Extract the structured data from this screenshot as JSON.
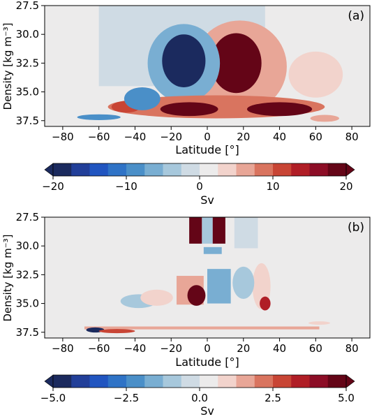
{
  "palette": [
    "#1b2a5e",
    "#223f99",
    "#2155c0",
    "#2f73c6",
    "#4a8fc8",
    "#79aed2",
    "#a7c8dc",
    "#cfdbe4",
    "#ecebeb",
    "#f2d3cc",
    "#e8a697",
    "#d9745f",
    "#c84535",
    "#b01e26",
    "#8c0d26",
    "#640517"
  ],
  "chart_data": [
    {
      "type": "heatmap",
      "panel_label": "(a)",
      "xlabel": "Latitude  [°]",
      "ylabel": "Density [kg m⁻³]",
      "xlim": [
        -90,
        90
      ],
      "ylim": [
        27.5,
        38.0
      ],
      "y_inverted": true,
      "xticks": [
        -80,
        -60,
        -40,
        -20,
        0,
        20,
        40,
        60,
        80
      ],
      "yticks": [
        27.5,
        30.0,
        32.5,
        35.0,
        37.5
      ],
      "colorbar": {
        "label": "Sv",
        "min": -20,
        "max": 20,
        "levels": 16,
        "extend": "both",
        "ticks": [
          -20,
          -10,
          0,
          10,
          20
        ]
      },
      "features": [
        {
          "shape": "rect",
          "lat0": -60,
          "lat1": 0,
          "rho0": 27.5,
          "rho1": 34.5,
          "value": -1.5
        },
        {
          "shape": "rect",
          "lat0": -2,
          "lat1": 32,
          "rho0": 27.5,
          "rho1": 29.8,
          "value": -1.5
        },
        {
          "shape": "ellipse",
          "lat": 18,
          "rho": 32.8,
          "rlat": 26,
          "rrho": 4.0,
          "value": 7
        },
        {
          "shape": "ellipse",
          "lat": 16,
          "rho": 32.5,
          "rlat": 14,
          "rrho": 2.6,
          "value": 22
        },
        {
          "shape": "ellipse",
          "lat": -13,
          "rho": 32.5,
          "rlat": 20,
          "rrho": 3.4,
          "value": -6
        },
        {
          "shape": "ellipse",
          "lat": -13,
          "rho": 32.3,
          "rlat": 12,
          "rrho": 2.3,
          "value": -22
        },
        {
          "shape": "ellipse",
          "lat": 5,
          "rho": 36.3,
          "rlat": 60,
          "rrho": 1.0,
          "value": 9
        },
        {
          "shape": "ellipse",
          "lat": -10,
          "rho": 36.5,
          "rlat": 16,
          "rrho": 0.6,
          "value": 20
        },
        {
          "shape": "ellipse",
          "lat": 40,
          "rho": 36.5,
          "rlat": 18,
          "rrho": 0.6,
          "value": 20
        },
        {
          "shape": "ellipse",
          "lat": -45,
          "rho": 36.3,
          "rlat": 8,
          "rrho": 0.5,
          "value": 12
        },
        {
          "shape": "ellipse",
          "lat": -36,
          "rho": 35.6,
          "rlat": 10,
          "rrho": 1.0,
          "value": -8
        },
        {
          "shape": "ellipse",
          "lat": -60,
          "rho": 37.2,
          "rlat": 12,
          "rrho": 0.25,
          "value": -10
        },
        {
          "shape": "ellipse",
          "lat": 60,
          "rho": 33.5,
          "rlat": 15,
          "rrho": 2.0,
          "value": 3
        },
        {
          "shape": "ellipse",
          "lat": 65,
          "rho": 37.3,
          "rlat": 8,
          "rrho": 0.3,
          "value": 6
        }
      ]
    },
    {
      "type": "heatmap",
      "panel_label": "(b)",
      "xlabel": "Latitude  [°]",
      "ylabel": "Density [kg m⁻³]",
      "xlim": [
        -90,
        90
      ],
      "ylim": [
        27.5,
        38.0
      ],
      "y_inverted": true,
      "xticks": [
        -80,
        -60,
        -40,
        -20,
        0,
        20,
        40,
        60,
        80
      ],
      "yticks": [
        27.5,
        30.0,
        32.5,
        35.0,
        37.5
      ],
      "colorbar": {
        "label": "Sv",
        "min": -5.0,
        "max": 5.0,
        "levels": 16,
        "extend": "both",
        "ticks": [
          "-5.0",
          "-2.5",
          "0.0",
          "2.5",
          "5.0"
        ]
      },
      "features": [
        {
          "shape": "rect",
          "lat0": 15,
          "lat1": 28,
          "rho0": 27.5,
          "rho1": 30.2,
          "value": -0.5
        },
        {
          "shape": "rect",
          "lat0": -3,
          "lat1": 3,
          "rho0": 27.5,
          "rho1": 29.8,
          "value": -0.8
        },
        {
          "shape": "rect",
          "lat0": -10,
          "lat1": -3,
          "rho0": 27.5,
          "rho1": 29.8,
          "value": 5.2
        },
        {
          "shape": "rect",
          "lat0": 3,
          "lat1": 10,
          "rho0": 27.5,
          "rho1": 29.8,
          "value": 5.2
        },
        {
          "shape": "rect",
          "lat0": -2,
          "lat1": 8,
          "rho0": 30.1,
          "rho1": 30.7,
          "value": -1.5
        },
        {
          "shape": "rect",
          "lat0": 0,
          "lat1": 13,
          "rho0": 32.0,
          "rho1": 35.0,
          "value": -1.6
        },
        {
          "shape": "rect",
          "lat0": -17,
          "lat1": -2,
          "rho0": 32.6,
          "rho1": 35.1,
          "value": 1.8
        },
        {
          "shape": "ellipse",
          "lat": -6,
          "rho": 34.3,
          "rlat": 5,
          "rrho": 0.9,
          "value": 4.5
        },
        {
          "shape": "ellipse",
          "lat": -38,
          "rho": 34.8,
          "rlat": 10,
          "rrho": 0.6,
          "value": -0.8
        },
        {
          "shape": "ellipse",
          "lat": -28,
          "rho": 34.5,
          "rlat": 9,
          "rrho": 0.7,
          "value": 0.7
        },
        {
          "shape": "ellipse",
          "lat": 30,
          "rho": 33.5,
          "rlat": 5,
          "rrho": 2.0,
          "value": 1.2
        },
        {
          "shape": "ellipse",
          "lat": 32,
          "rho": 35.0,
          "rlat": 3,
          "rrho": 0.6,
          "value": 3.5
        },
        {
          "shape": "ellipse",
          "lat": 20,
          "rho": 33.2,
          "rlat": 6,
          "rrho": 1.4,
          "value": -0.9
        },
        {
          "shape": "rect",
          "lat0": -68,
          "lat1": 62,
          "rho0": 37.0,
          "rho1": 37.25,
          "value": 1.6
        },
        {
          "shape": "ellipse",
          "lat": -62,
          "rho": 37.3,
          "rlat": 5,
          "rrho": 0.22,
          "value": -4.5
        },
        {
          "shape": "ellipse",
          "lat": -50,
          "rho": 37.4,
          "rlat": 10,
          "rrho": 0.18,
          "value": 2.5
        },
        {
          "shape": "ellipse",
          "lat": 62,
          "rho": 36.7,
          "rlat": 6,
          "rrho": 0.15,
          "value": 0.8
        }
      ]
    }
  ]
}
